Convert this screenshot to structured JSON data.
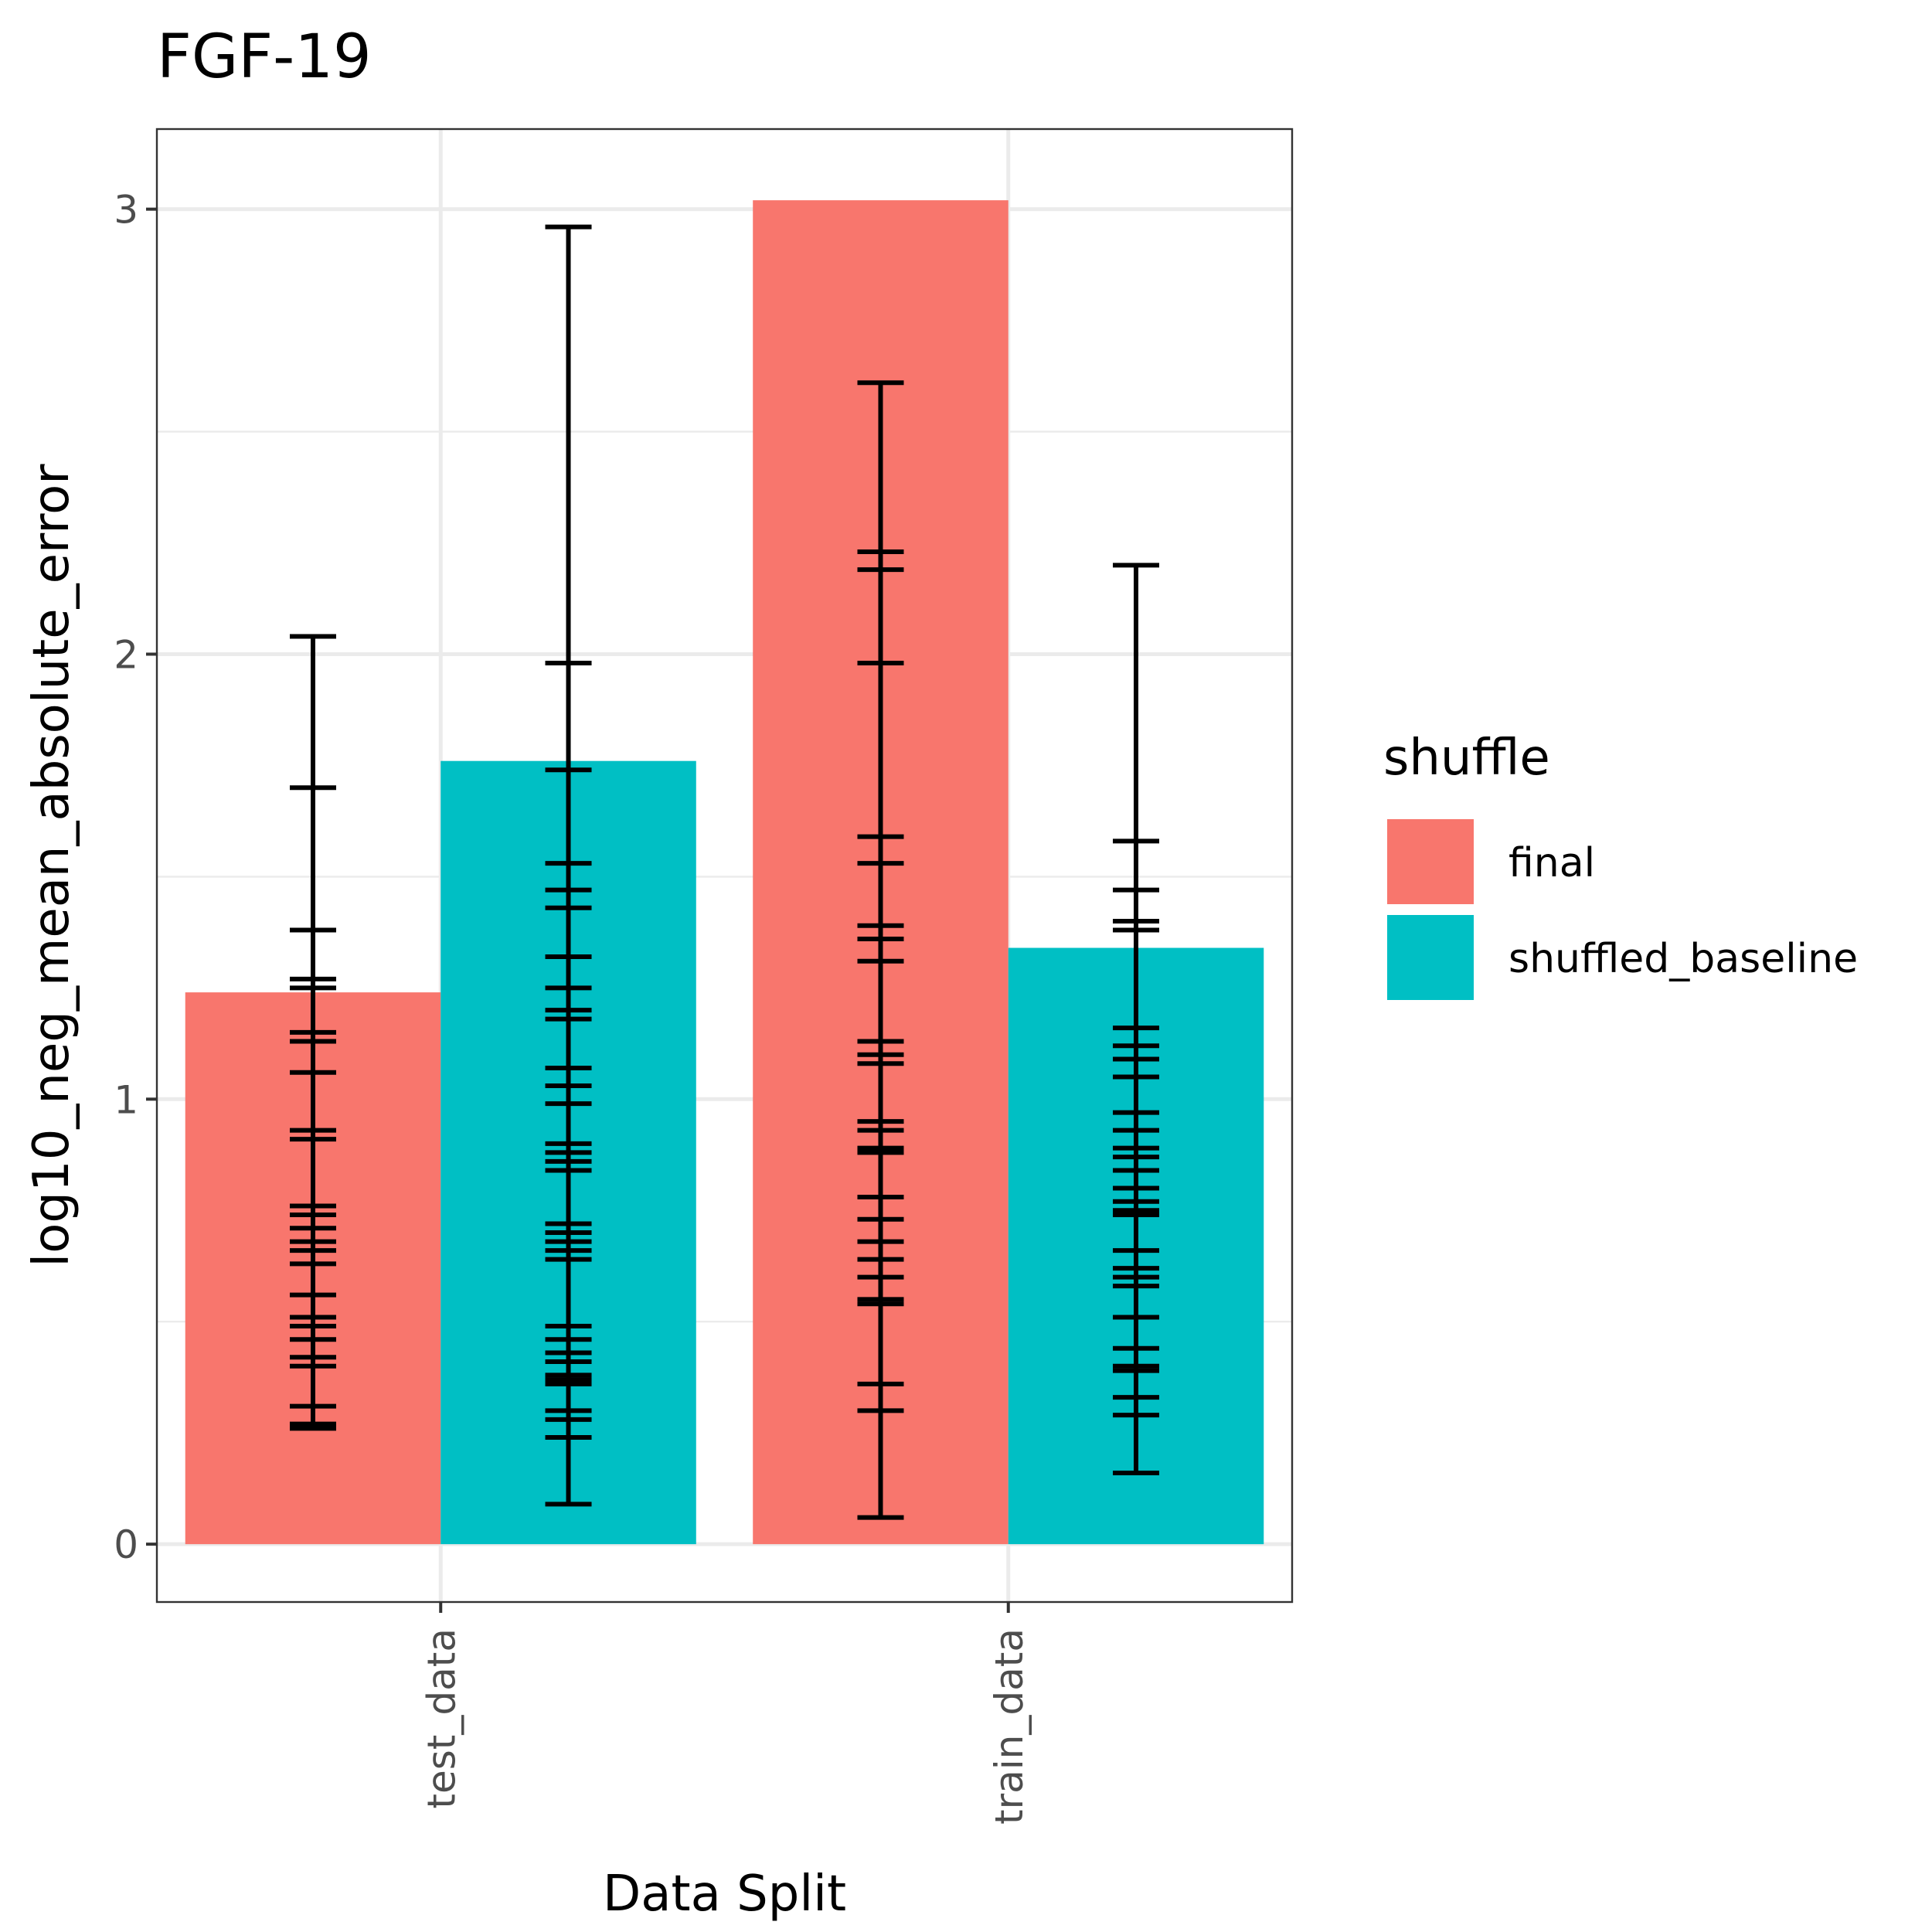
{
  "chart_data": {
    "type": "bar",
    "title": "FGF-19",
    "xlabel": "Data Split",
    "ylabel": "log10_neg_mean_absolute_error",
    "categories": [
      "test_data",
      "train_data"
    ],
    "ylim": [
      -0.13,
      3.18
    ],
    "yticks": [
      0,
      1,
      2,
      3
    ],
    "grid": true,
    "legend": {
      "title": "shuffle",
      "position": "right"
    },
    "series": [
      {
        "name": "final",
        "color": "#F8766D",
        "values": [
          1.24,
          3.02
        ],
        "error_ticks": [
          [
            2.04,
            1.7,
            1.38,
            1.27,
            1.25,
            1.15,
            1.13,
            1.06,
            0.93,
            0.91,
            0.76,
            0.74,
            0.71,
            0.68,
            0.66,
            0.63,
            0.56,
            0.51,
            0.49,
            0.46,
            0.42,
            0.4,
            0.31,
            0.27,
            0.26
          ],
          [
            2.61,
            2.23,
            2.19,
            1.98,
            1.59,
            1.53,
            1.39,
            1.36,
            1.31,
            1.13,
            1.1,
            1.08,
            0.95,
            0.93,
            0.89,
            0.88,
            0.78,
            0.73,
            0.68,
            0.64,
            0.6,
            0.55,
            0.54,
            0.36,
            0.3,
            0.06
          ]
        ]
      },
      {
        "name": "shuffled_baseline",
        "color": "#00BFC4",
        "values": [
          1.76,
          1.34
        ],
        "error_ticks": [
          [
            2.96,
            1.98,
            1.74,
            1.53,
            1.47,
            1.43,
            1.32,
            1.25,
            1.2,
            1.18,
            1.07,
            1.03,
            0.99,
            0.9,
            0.88,
            0.86,
            0.84,
            0.72,
            0.7,
            0.68,
            0.66,
            0.64,
            0.49,
            0.46,
            0.43,
            0.41,
            0.38,
            0.37,
            0.36,
            0.3,
            0.28,
            0.24,
            0.09
          ],
          [
            2.2,
            1.58,
            1.47,
            1.4,
            1.38,
            1.16,
            1.12,
            1.09,
            1.05,
            0.97,
            0.93,
            0.89,
            0.87,
            0.84,
            0.8,
            0.77,
            0.75,
            0.74,
            0.66,
            0.62,
            0.6,
            0.58,
            0.51,
            0.44,
            0.4,
            0.39,
            0.33,
            0.29,
            0.16
          ]
        ]
      }
    ]
  }
}
